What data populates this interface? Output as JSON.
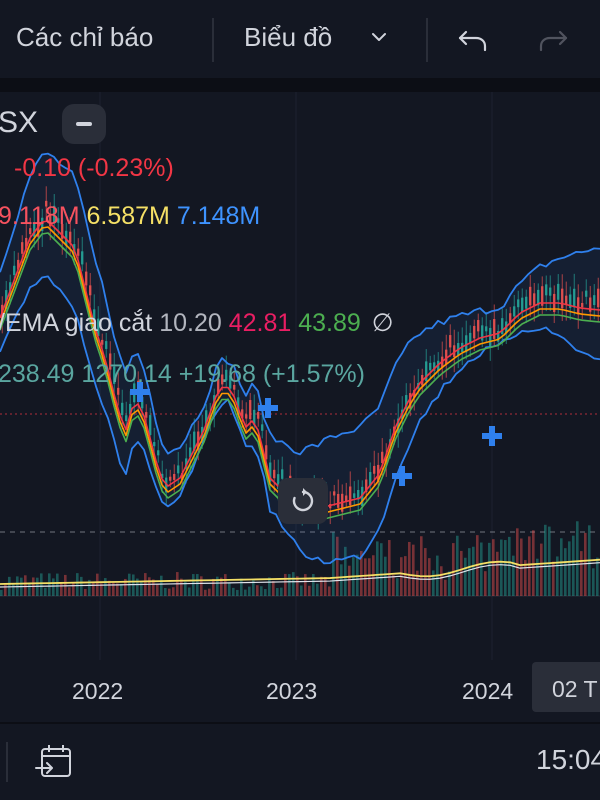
{
  "toolbar": {
    "indicators_label": "Các chỉ báo",
    "chart_label": "Biểu đồ"
  },
  "legend": {
    "symbol": "SX",
    "change": "-0.10 (-0.23%)",
    "volume": {
      "v1": "9.118M",
      "v2": "6.587M",
      "v3": "7.148M"
    },
    "ema": {
      "title": "/EMA giao cắt",
      "a": "10.20",
      "b": "42.81",
      "c": "43.89"
    },
    "index_line": "238.49  1270.14  +19.68 (+1.57%)"
  },
  "x_axis": {
    "labels": [
      "2022",
      "2023",
      "2024"
    ],
    "current_date": "02 T"
  },
  "status": {
    "clock": "15:04"
  },
  "colors": {
    "background": "#131722",
    "up": "#26a69a",
    "down": "#ef5350",
    "bollinger": "#2f80ed",
    "ema_fast": "#f23645",
    "ema_mid": "#ff9800",
    "ema_slow": "#4caf50",
    "index_line": "#f5e066"
  },
  "icons": [
    "minus-icon",
    "chevron-down-icon",
    "undo-icon",
    "redo-icon",
    "reset-icon",
    "goto-date-icon",
    "eye-off-icon"
  ]
}
